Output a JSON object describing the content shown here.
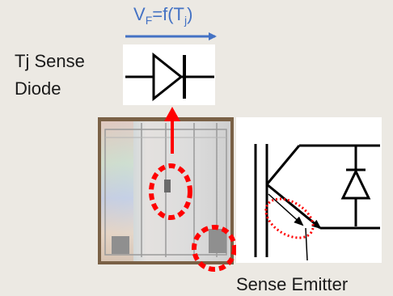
{
  "formula": {
    "v": "V",
    "v_sub": "F",
    "mid": "=f(T",
    "t_sub": "j",
    "end": ")"
  },
  "labels": {
    "sense_diode_line1": "Tj Sense",
    "sense_diode_line2": "Diode",
    "sense_emitter": "Sense Emitter"
  },
  "colors": {
    "background": "#ece9e3",
    "formula_blue": "#4472c4",
    "arrow_red": "#ff0000",
    "symbol_black": "#000000",
    "panel_white": "#ffffff"
  }
}
